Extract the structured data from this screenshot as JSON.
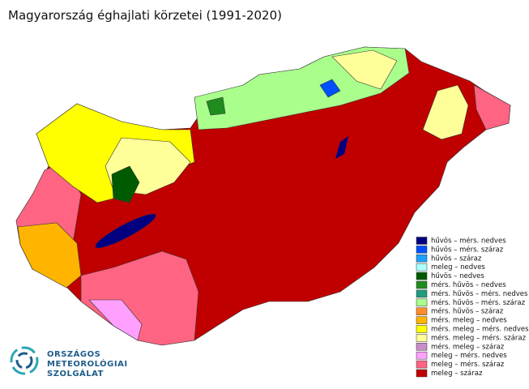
{
  "title": "Magyarország éghajlati körzetei (1991-2020)",
  "legend": [
    {
      "label": "hűvös – mérs. nedves",
      "color": "#000080"
    },
    {
      "label": "hűvös – mérs. száraz",
      "color": "#0050ff"
    },
    {
      "label": "hűvös – száraz",
      "color": "#1ea0ff"
    },
    {
      "label": "meleg – nedves",
      "color": "#aaffff"
    },
    {
      "label": "hűvös – nedves",
      "color": "#005a00"
    },
    {
      "label": "mérs. hűvös – nedves",
      "color": "#1e8c1e"
    },
    {
      "label": "mérs. hűvös – mérs. nedves",
      "color": "#1e9c7c"
    },
    {
      "label": "mérs. hűvös – mérs. száraz",
      "color": "#aaff8c"
    },
    {
      "label": "mérs. hűvös – száraz",
      "color": "#ff8c28"
    },
    {
      "label": "mérs. meleg – nedves",
      "color": "#ffb400"
    },
    {
      "label": "mérs. meleg – mérs. nedves",
      "color": "#ffff00"
    },
    {
      "label": "mérs. meleg – mérs. száraz",
      "color": "#ffff99"
    },
    {
      "label": "mérs. meleg – száraz",
      "color": "#c88cc8"
    },
    {
      "label": "meleg – mérs. nedves",
      "color": "#ffa0ff"
    },
    {
      "label": "meleg – mérs. száraz",
      "color": "#ff6482"
    },
    {
      "label": "meleg – száraz",
      "color": "#c00000"
    }
  ],
  "logo": {
    "lines": [
      "ORSZÁGOS",
      "METEOROLÓGIAI",
      "SZOLGÁLAT"
    ]
  }
}
